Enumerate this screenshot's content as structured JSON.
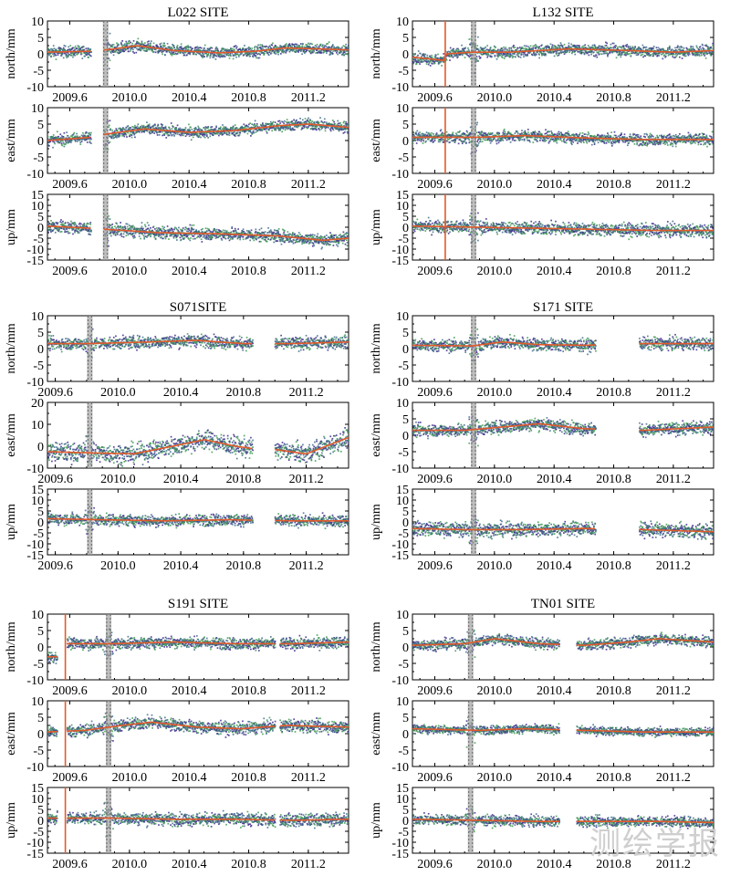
{
  "watermark": "测绘学报",
  "axis_labels": {
    "north": "north/mm",
    "east": "east/mm",
    "up": "up/mm"
  },
  "colors": {
    "series_a": "#3c2a8c",
    "series_b": "#3f9a52",
    "mid": "#3f6f8a",
    "model": "#e25a2b",
    "gap": "#666666",
    "event": "#e25a2b"
  },
  "chart_data": [
    {
      "type": "scatter",
      "title": "L022 SITE",
      "x_range": [
        2009.45,
        2011.47
      ],
      "x_ticks": [
        "2009.6",
        "2010.0",
        "2010.4",
        "2010.8",
        "2011.2"
      ],
      "gap_marker": 2009.84,
      "event_marker": null,
      "data_gaps": [
        [
          2009.745,
          2009.83
        ]
      ],
      "components": [
        {
          "name": "north",
          "ylabel": "north/mm",
          "ylim": [
            -10,
            10
          ],
          "yticks": [
            "10",
            "5",
            "0",
            "-5",
            "-10"
          ],
          "scatter": 1.2,
          "trend": [
            [
              2009.45,
              0.5
            ],
            [
              2009.75,
              0.8
            ],
            [
              2009.9,
              1.5
            ],
            [
              2010.05,
              2.5
            ],
            [
              2010.3,
              1.0
            ],
            [
              2010.6,
              0.3
            ],
            [
              2010.85,
              0.8
            ],
            [
              2011.05,
              1.8
            ],
            [
              2011.47,
              1.2
            ]
          ]
        },
        {
          "name": "east",
          "ylabel": "east/mm",
          "ylim": [
            -10,
            10
          ],
          "yticks": [
            "10",
            "5",
            "0",
            "-5",
            "-10"
          ],
          "scatter": 1.2,
          "trend": [
            [
              2009.45,
              0.0
            ],
            [
              2009.75,
              1.0
            ],
            [
              2009.85,
              2.0
            ],
            [
              2010.1,
              3.5
            ],
            [
              2010.4,
              2.5
            ],
            [
              2010.7,
              3.0
            ],
            [
              2011.0,
              4.5
            ],
            [
              2011.2,
              5.0
            ],
            [
              2011.47,
              4.0
            ]
          ]
        },
        {
          "name": "up",
          "ylabel": "up/mm",
          "ylim": [
            -15,
            15
          ],
          "yticks": [
            "15",
            "10",
            "5",
            "0",
            "-5",
            "-10",
            "-15"
          ],
          "scatter": 2.0,
          "trend": [
            [
              2009.45,
              0.5
            ],
            [
              2009.75,
              -0.5
            ],
            [
              2009.85,
              -1.0
            ],
            [
              2010.2,
              -2.5
            ],
            [
              2010.6,
              -3.0
            ],
            [
              2011.0,
              -4.0
            ],
            [
              2011.3,
              -6.0
            ],
            [
              2011.47,
              -5.0
            ]
          ]
        }
      ]
    },
    {
      "type": "scatter",
      "title": "L132 SITE",
      "x_range": [
        2009.45,
        2011.47
      ],
      "x_ticks": [
        "2009.6",
        "2010.0",
        "2010.4",
        "2010.8",
        "2011.2"
      ],
      "gap_marker": 2009.86,
      "event_marker": 2009.67,
      "data_gaps": [],
      "components": [
        {
          "name": "north",
          "ylabel": "north/mm",
          "ylim": [
            -10,
            10
          ],
          "yticks": [
            "10",
            "5",
            "0",
            "-5",
            "-10"
          ],
          "scatter": 1.2,
          "trend": [
            [
              2009.45,
              -1.0
            ],
            [
              2009.66,
              -2.0
            ],
            [
              2009.68,
              0.0
            ],
            [
              2009.85,
              0.5
            ],
            [
              2010.1,
              0.5
            ],
            [
              2010.5,
              1.5
            ],
            [
              2010.9,
              1.0
            ],
            [
              2011.2,
              0.5
            ],
            [
              2011.47,
              1.0
            ]
          ]
        },
        {
          "name": "east",
          "ylabel": "east/mm",
          "ylim": [
            -10,
            10
          ],
          "yticks": [
            "10",
            "5",
            "0",
            "-5",
            "-10"
          ],
          "scatter": 1.2,
          "trend": [
            [
              2009.45,
              1.0
            ],
            [
              2009.9,
              1.0
            ],
            [
              2010.2,
              1.5
            ],
            [
              2010.6,
              0.8
            ],
            [
              2011.0,
              0.3
            ],
            [
              2011.47,
              0.3
            ]
          ]
        },
        {
          "name": "up",
          "ylabel": "up/mm",
          "ylim": [
            -15,
            15
          ],
          "yticks": [
            "15",
            "10",
            "5",
            "0",
            "-5",
            "-10",
            "-15"
          ],
          "scatter": 2.0,
          "trend": [
            [
              2009.45,
              0.5
            ],
            [
              2009.9,
              0.0
            ],
            [
              2010.3,
              -0.5
            ],
            [
              2010.7,
              -1.0
            ],
            [
              2011.1,
              -1.5
            ],
            [
              2011.47,
              -1.5
            ]
          ]
        }
      ]
    },
    {
      "type": "scatter",
      "title": "S071SITE",
      "x_range": [
        2009.55,
        2011.47
      ],
      "x_ticks": [
        "2009.6",
        "2010.0",
        "2010.4",
        "2010.8",
        "2011.2"
      ],
      "gap_marker": 2009.82,
      "event_marker": null,
      "data_gaps": [
        [
          2010.86,
          2011.0
        ]
      ],
      "components": [
        {
          "name": "north",
          "ylabel": "north/mm",
          "ylim": [
            -10,
            10
          ],
          "yticks": [
            "10",
            "5",
            "0",
            "-5",
            "-10"
          ],
          "scatter": 1.3,
          "trend": [
            [
              2009.55,
              1.5
            ],
            [
              2009.8,
              1.5
            ],
            [
              2010.2,
              2.0
            ],
            [
              2010.5,
              2.5
            ],
            [
              2010.8,
              1.5
            ],
            [
              2011.1,
              1.5
            ],
            [
              2011.47,
              2.0
            ]
          ]
        },
        {
          "name": "east",
          "ylabel": "east/mm",
          "ylim": [
            -10,
            20
          ],
          "yticks": [
            "20",
            "10",
            "0",
            "-10"
          ],
          "scatter": 3.0,
          "trend": [
            [
              2009.55,
              -2.5
            ],
            [
              2009.8,
              -3.0
            ],
            [
              2010.1,
              -3.5
            ],
            [
              2010.35,
              0.0
            ],
            [
              2010.55,
              3.0
            ],
            [
              2010.75,
              0.0
            ],
            [
              2010.85,
              -1.0
            ],
            [
              2011.0,
              -1.5
            ],
            [
              2011.2,
              -3.5
            ],
            [
              2011.47,
              4.0
            ]
          ]
        },
        {
          "name": "up",
          "ylabel": "up/mm",
          "ylim": [
            -15,
            15
          ],
          "yticks": [
            "15",
            "10",
            "5",
            "0",
            "-5",
            "-10",
            "-15"
          ],
          "scatter": 1.8,
          "trend": [
            [
              2009.55,
              1.5
            ],
            [
              2009.9,
              1.0
            ],
            [
              2010.3,
              0.5
            ],
            [
              2010.7,
              1.0
            ],
            [
              2011.1,
              0.5
            ],
            [
              2011.47,
              0.5
            ]
          ]
        }
      ]
    },
    {
      "type": "scatter",
      "title": "S171 SITE",
      "x_range": [
        2009.45,
        2011.47
      ],
      "x_ticks": [
        "2009.6",
        "2010.0",
        "2010.4",
        "2010.8",
        "2011.2"
      ],
      "gap_marker": 2009.86,
      "event_marker": null,
      "data_gaps": [
        [
          2010.68,
          2010.97
        ]
      ],
      "components": [
        {
          "name": "north",
          "ylabel": "north/mm",
          "ylim": [
            -10,
            10
          ],
          "yticks": [
            "10",
            "5",
            "0",
            "-5",
            "-10"
          ],
          "scatter": 1.3,
          "trend": [
            [
              2009.45,
              1.0
            ],
            [
              2009.85,
              0.8
            ],
            [
              2010.05,
              2.0
            ],
            [
              2010.3,
              1.2
            ],
            [
              2010.6,
              1.0
            ],
            [
              2011.0,
              1.5
            ],
            [
              2011.47,
              1.5
            ]
          ]
        },
        {
          "name": "east",
          "ylabel": "east/mm",
          "ylim": [
            -10,
            10
          ],
          "yticks": [
            "10",
            "5",
            "0",
            "-5",
            "-10"
          ],
          "scatter": 1.3,
          "trend": [
            [
              2009.45,
              1.5
            ],
            [
              2009.8,
              1.5
            ],
            [
              2010.05,
              2.5
            ],
            [
              2010.3,
              3.5
            ],
            [
              2010.6,
              2.0
            ],
            [
              2011.0,
              1.5
            ],
            [
              2011.47,
              2.5
            ]
          ]
        },
        {
          "name": "up",
          "ylabel": "up/mm",
          "ylim": [
            -15,
            15
          ],
          "yticks": [
            "15",
            "10",
            "5",
            "0",
            "-5",
            "-10",
            "-15"
          ],
          "scatter": 2.2,
          "trend": [
            [
              2009.45,
              -3.0
            ],
            [
              2009.8,
              -3.5
            ],
            [
              2010.2,
              -3.5
            ],
            [
              2010.6,
              -3.0
            ],
            [
              2011.0,
              -3.5
            ],
            [
              2011.47,
              -4.5
            ]
          ]
        }
      ]
    },
    {
      "type": "scatter",
      "title": "S191 SITE",
      "x_range": [
        2009.45,
        2011.47
      ],
      "x_ticks": [
        "2009.6",
        "2010.0",
        "2010.4",
        "2010.8",
        "2011.2"
      ],
      "gap_marker": 2009.86,
      "event_marker": 2009.57,
      "data_gaps": [
        [
          2009.52,
          2009.58
        ],
        [
          2010.98,
          2011.01
        ]
      ],
      "components": [
        {
          "name": "north",
          "ylabel": "north/mm",
          "ylim": [
            -10,
            10
          ],
          "yticks": [
            "10",
            "5",
            "0",
            "-5",
            "-10"
          ],
          "scatter": 1.2,
          "trend": [
            [
              2009.45,
              -3.0
            ],
            [
              2009.52,
              -3.0
            ],
            [
              2009.58,
              1.0
            ],
            [
              2009.9,
              1.0
            ],
            [
              2010.3,
              1.5
            ],
            [
              2010.7,
              1.0
            ],
            [
              2011.1,
              1.0
            ],
            [
              2011.47,
              1.5
            ]
          ]
        },
        {
          "name": "east",
          "ylabel": "east/mm",
          "ylim": [
            -10,
            10
          ],
          "yticks": [
            "10",
            "5",
            "0",
            "-5",
            "-10"
          ],
          "scatter": 1.3,
          "trend": [
            [
              2009.45,
              0.5
            ],
            [
              2009.7,
              1.0
            ],
            [
              2009.95,
              2.5
            ],
            [
              2010.15,
              3.5
            ],
            [
              2010.45,
              2.0
            ],
            [
              2010.75,
              1.5
            ],
            [
              2011.05,
              2.5
            ],
            [
              2011.47,
              2.0
            ]
          ]
        },
        {
          "name": "up",
          "ylabel": "up/mm",
          "ylim": [
            -15,
            15
          ],
          "yticks": [
            "15",
            "10",
            "5",
            "0",
            "-5",
            "-10",
            "-15"
          ],
          "scatter": 2.0,
          "trend": [
            [
              2009.45,
              1.0
            ],
            [
              2009.9,
              1.0
            ],
            [
              2010.3,
              0.5
            ],
            [
              2010.7,
              0.5
            ],
            [
              2011.1,
              0.0
            ],
            [
              2011.47,
              0.5
            ]
          ]
        }
      ]
    },
    {
      "type": "scatter",
      "title": "TN01 SITE",
      "x_range": [
        2009.45,
        2011.47
      ],
      "x_ticks": [
        "2009.6",
        "2010.0",
        "2010.4",
        "2010.8",
        "2011.2"
      ],
      "gap_marker": 2009.84,
      "event_marker": null,
      "data_gaps": [
        [
          2010.44,
          2010.55
        ]
      ],
      "components": [
        {
          "name": "north",
          "ylabel": "north/mm",
          "ylim": [
            -10,
            10
          ],
          "yticks": [
            "10",
            "5",
            "0",
            "-5",
            "-10"
          ],
          "scatter": 1.1,
          "trend": [
            [
              2009.45,
              0.5
            ],
            [
              2009.8,
              1.0
            ],
            [
              2010.0,
              2.5
            ],
            [
              2010.3,
              1.0
            ],
            [
              2010.6,
              0.5
            ],
            [
              2010.9,
              1.5
            ],
            [
              2011.1,
              2.5
            ],
            [
              2011.47,
              1.5
            ]
          ]
        },
        {
          "name": "east",
          "ylabel": "east/mm",
          "ylim": [
            -10,
            10
          ],
          "yticks": [
            "10",
            "5",
            "0",
            "-5",
            "-10"
          ],
          "scatter": 0.9,
          "trend": [
            [
              2009.45,
              1.5
            ],
            [
              2009.9,
              1.0
            ],
            [
              2010.2,
              1.5
            ],
            [
              2010.6,
              1.0
            ],
            [
              2011.0,
              0.5
            ],
            [
              2011.47,
              0.5
            ]
          ]
        },
        {
          "name": "up",
          "ylabel": "up/mm",
          "ylim": [
            -15,
            15
          ],
          "yticks": [
            "15",
            "10",
            "5",
            "0",
            "-5",
            "-10",
            "-15"
          ],
          "scatter": 1.6,
          "trend": [
            [
              2009.45,
              0.5
            ],
            [
              2009.9,
              0.0
            ],
            [
              2010.3,
              -0.5
            ],
            [
              2010.7,
              -0.5
            ],
            [
              2011.1,
              -0.5
            ],
            [
              2011.47,
              -1.0
            ]
          ]
        }
      ]
    }
  ]
}
